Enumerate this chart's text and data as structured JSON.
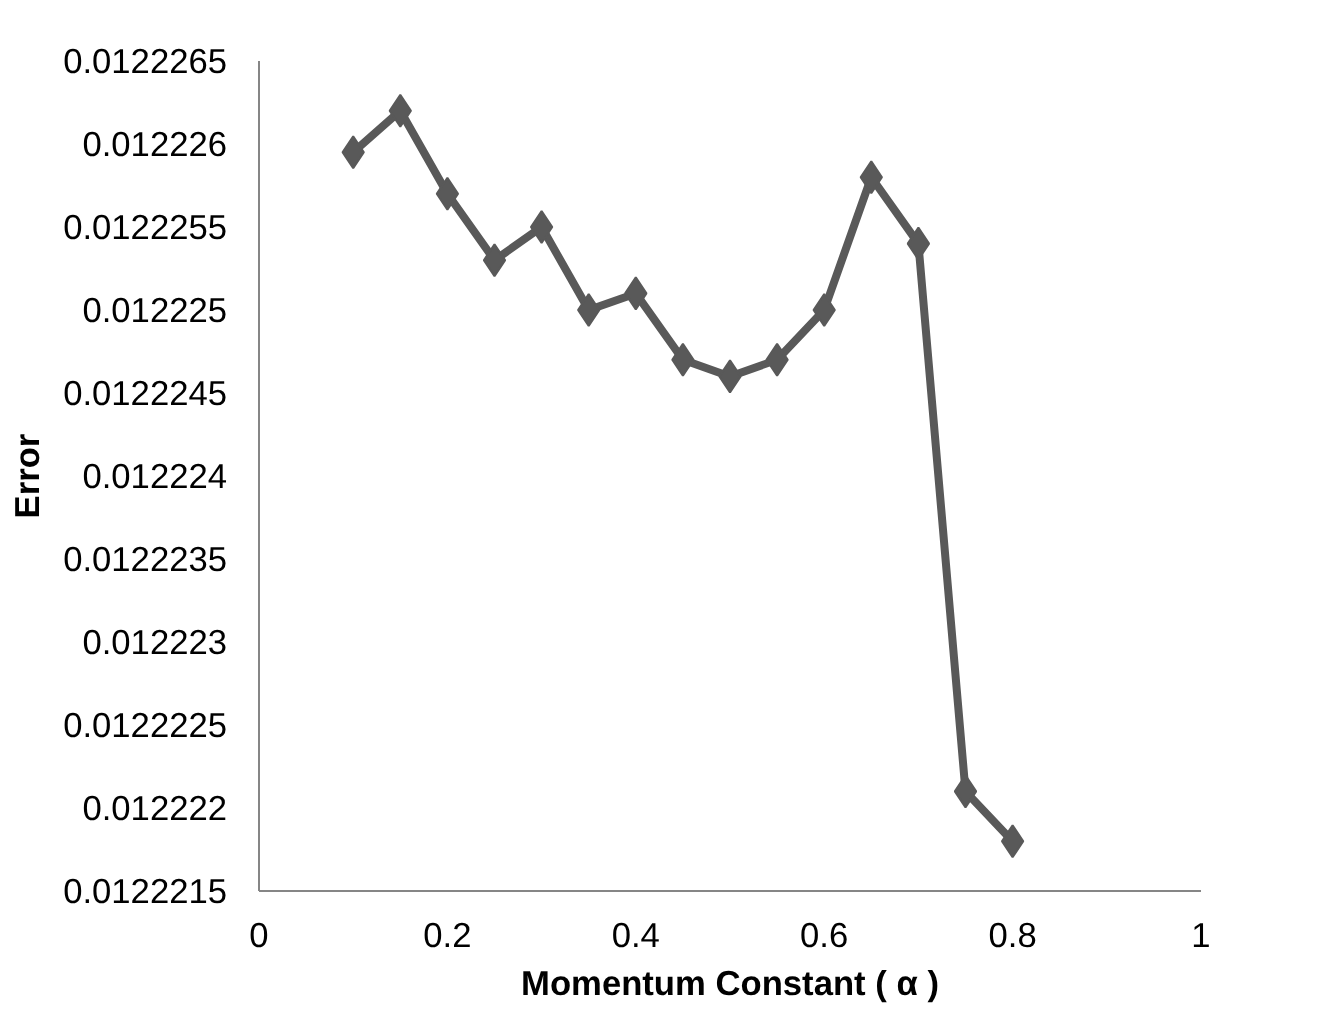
{
  "chart_data": {
    "type": "line",
    "xlabel": "Momentum Constant ( α )",
    "ylabel": "Error",
    "x": [
      0.1,
      0.15,
      0.2,
      0.25,
      0.3,
      0.35,
      0.4,
      0.45,
      0.5,
      0.55,
      0.6,
      0.65,
      0.7,
      0.75,
      0.8
    ],
    "series": [
      {
        "color": "#595959",
        "values": [
          0.01222595,
          0.0122262,
          0.0122257,
          0.0122253,
          0.0122255,
          0.012225,
          0.0122251,
          0.0122247,
          0.0122246,
          0.0122247,
          0.012225,
          0.0122258,
          0.0122254,
          0.0122221,
          0.0122218
        ]
      }
    ],
    "xlim": [
      0,
      1
    ],
    "xticks": [
      0,
      0.2,
      0.4,
      0.6,
      0.8,
      1
    ],
    "ylim": [
      0.0122215,
      0.0122265
    ],
    "yticks": [
      {
        "value": 0.0122215,
        "label": "0.0122215"
      },
      {
        "value": 0.012222,
        "label": "0.012222"
      },
      {
        "value": 0.0122225,
        "label": "0.0122225"
      },
      {
        "value": 0.012223,
        "label": "0.012223"
      },
      {
        "value": 0.0122235,
        "label": "0.0122235"
      },
      {
        "value": 0.012224,
        "label": "0.012224"
      },
      {
        "value": 0.0122245,
        "label": "0.0122245"
      },
      {
        "value": 0.012225,
        "label": "0.012225"
      },
      {
        "value": 0.0122255,
        "label": "0.0122255"
      },
      {
        "value": 0.012226,
        "label": "0.012226"
      },
      {
        "value": 0.0122265,
        "label": "0.0122265"
      }
    ],
    "grid": false,
    "marker": "diamond",
    "line_style": "solid"
  }
}
